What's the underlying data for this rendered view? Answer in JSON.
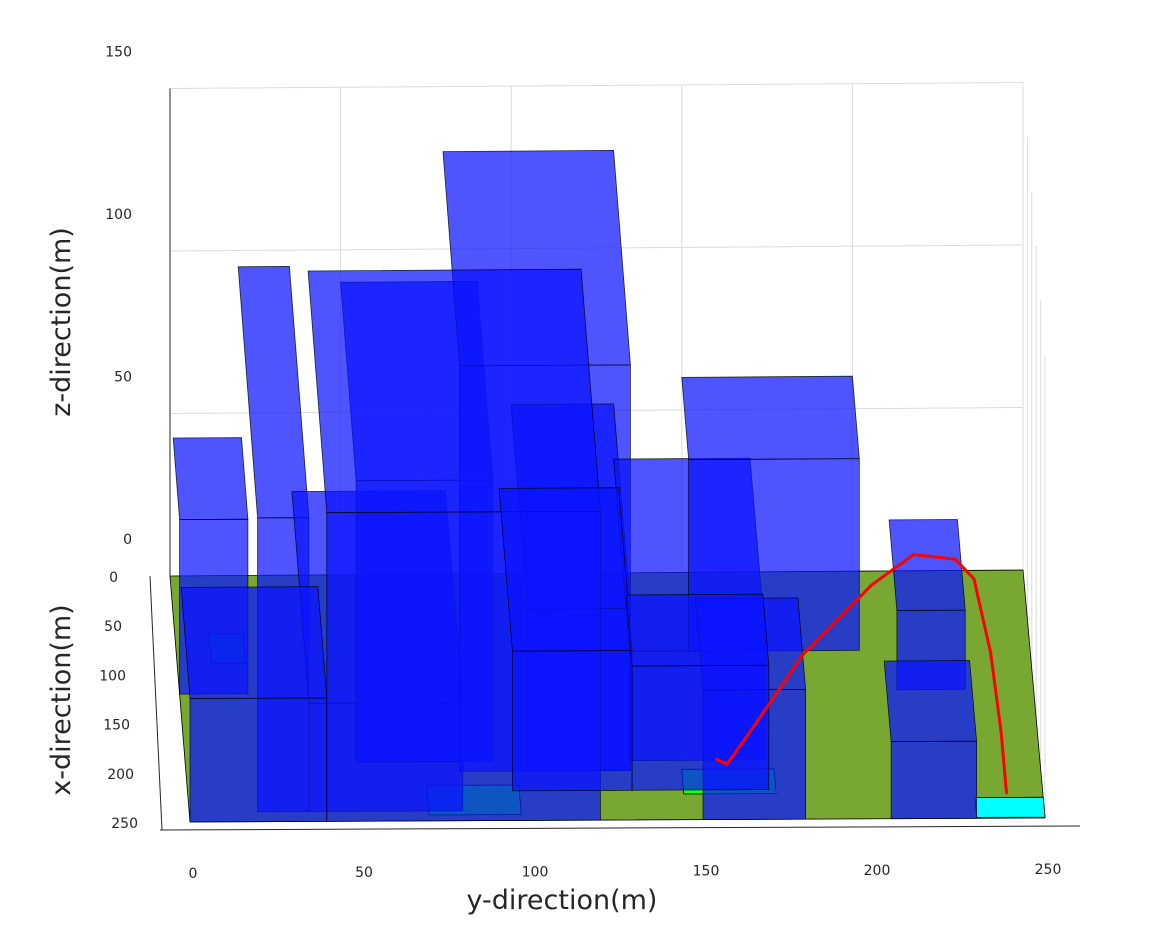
{
  "chart_data": {
    "type": "3d-scene",
    "xlabel": "x-direction(m)",
    "ylabel": "y-direction(m)",
    "zlabel": "z-direction(m)",
    "x_ticks": [
      "0",
      "50",
      "100",
      "150",
      "200",
      "250"
    ],
    "y_ticks": [
      "0",
      "50",
      "100",
      "150",
      "200",
      "250"
    ],
    "z_ticks": [
      "0",
      "50",
      "100",
      "150"
    ],
    "xlim": [
      0,
      250
    ],
    "ylim": [
      0,
      250
    ],
    "zlim": [
      0,
      150
    ],
    "grid": true,
    "colors": {
      "ground": "#78a832",
      "building": "#0a14ff",
      "landing_zone": "#16ff1d",
      "goal_zone": "#00ffff",
      "path": "#ff0000",
      "grid": "#dcdcdc",
      "axis": "#262626"
    },
    "buildings": [
      {
        "y": [
          0,
          20
        ],
        "x": [
          40,
          120
        ],
        "h": 55
      },
      {
        "y": [
          20,
          35
        ],
        "x": [
          0,
          240
        ],
        "h": 95
      },
      {
        "y": [
          35,
          80
        ],
        "x": [
          30,
          240
        ],
        "h": 35
      },
      {
        "y": [
          50,
          90
        ],
        "x": [
          0,
          190
        ],
        "h": 90
      },
      {
        "y": [
          80,
          130
        ],
        "x": [
          0,
          200
        ],
        "h": 130
      },
      {
        "y": [
          100,
          130
        ],
        "x": [
          0,
          200
        ],
        "h": 52
      },
      {
        "y": [
          130,
          170
        ],
        "x": [
          0,
          190
        ],
        "h": 35
      },
      {
        "y": [
          150,
          200
        ],
        "x": [
          0,
          80
        ],
        "h": 60
      },
      {
        "y": [
          150,
          180
        ],
        "x": [
          160,
          250
        ],
        "h": 42
      },
      {
        "y": [
          210,
          230
        ],
        "x": [
          30,
          120
        ],
        "h": 25
      },
      {
        "y": [
          205,
          230
        ],
        "x": [
          170,
          250
        ],
        "h": 25
      },
      {
        "y": [
          40,
          120
        ],
        "x": [
          20,
          250
        ],
        "h": 100
      },
      {
        "y": [
          0,
          40
        ],
        "x": [
          140,
          250
        ],
        "h": 40
      },
      {
        "y": [
          95,
          130
        ],
        "x": [
          60,
          220
        ],
        "h": 45
      },
      {
        "y": [
          130,
          170
        ],
        "x": [
          150,
          220
        ],
        "h": 40
      }
    ],
    "landing_zones": [
      {
        "y": [
          10,
          20
        ],
        "x": [
          60,
          90
        ]
      },
      {
        "y": [
          70,
          97
        ],
        "x": [
          215,
          245
        ]
      },
      {
        "y": [
          145,
          172
        ],
        "x": [
          200,
          225
        ]
      }
    ],
    "goal_zone": {
      "y": [
        230,
        250
      ],
      "x": [
        230,
        250
      ]
    },
    "path": {
      "y": [
        155,
        158,
        165,
        183,
        205,
        218,
        230,
        235,
        238,
        239,
        239
      ],
      "x": [
        205,
        210,
        180,
        100,
        30,
        0,
        5,
        25,
        100,
        180,
        240
      ],
      "z": [
        5,
        5,
        5,
        5,
        5,
        5,
        5,
        5,
        5,
        5,
        5
      ]
    }
  }
}
